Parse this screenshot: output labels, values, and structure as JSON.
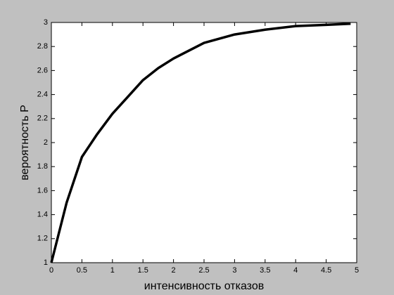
{
  "chart_data": {
    "type": "line",
    "x_label": "интенсивность отказов",
    "y_label": "вероятность P",
    "x": [
      0,
      0.25,
      0.5,
      0.75,
      1,
      1.25,
      1.5,
      1.75,
      2,
      2.5,
      3,
      3.5,
      4,
      4.5,
      4.9
    ],
    "series": [
      {
        "color": "#000000",
        "values": [
          1.0,
          1.5,
          1.88,
          2.07,
          2.24,
          2.38,
          2.52,
          2.62,
          2.7,
          2.83,
          2.9,
          2.94,
          2.97,
          2.98,
          2.99
        ]
      }
    ],
    "xlim": [
      0,
      5
    ],
    "xticks": [
      0,
      0.5,
      1,
      1.5,
      2,
      2.5,
      3,
      3.5,
      4,
      4.5,
      5
    ],
    "ylim": [
      1,
      3
    ],
    "yticks": [
      1,
      1.2,
      1.4,
      1.6,
      1.8,
      2,
      2.2,
      2.4,
      2.6,
      2.8,
      3
    ],
    "grid": false
  }
}
